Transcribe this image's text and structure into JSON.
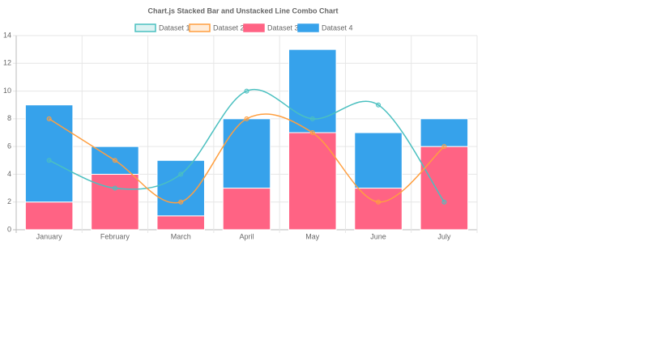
{
  "chart_data": {
    "type": "bar",
    "title": "Chart.js Stacked Bar and Unstacked Line Combo Chart",
    "categories": [
      "January",
      "February",
      "March",
      "April",
      "May",
      "June",
      "July"
    ],
    "stacked": true,
    "grid": true,
    "ylim": [
      0,
      14
    ],
    "yticks": [
      0,
      2,
      4,
      6,
      8,
      10,
      12,
      14
    ],
    "series": [
      {
        "name": "Dataset 1",
        "type": "line",
        "color": "#4bc0c0",
        "values": [
          5,
          3,
          4,
          10,
          8,
          9,
          2
        ]
      },
      {
        "name": "Dataset 2",
        "type": "line",
        "color": "#ff9f40",
        "values": [
          8,
          5,
          2,
          8,
          7,
          2,
          6
        ]
      },
      {
        "name": "Dataset 3",
        "type": "bar",
        "color": "#ff6384",
        "values": [
          2,
          4,
          1,
          3,
          7,
          3,
          6
        ]
      },
      {
        "name": "Dataset 4",
        "type": "bar",
        "color": "#36a2eb",
        "values": [
          7,
          2,
          4,
          5,
          6,
          4,
          2
        ]
      }
    ]
  }
}
